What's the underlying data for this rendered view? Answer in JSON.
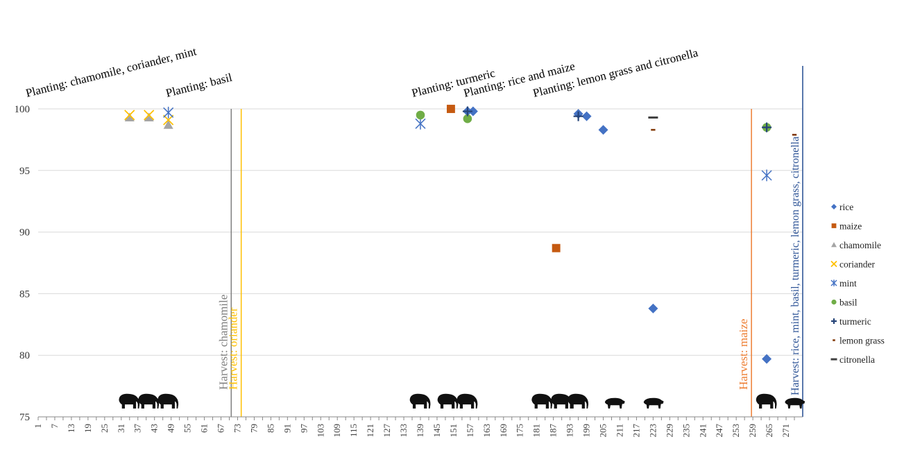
{
  "chart_data": {
    "type": "scatter",
    "title": "",
    "xlabel": "",
    "ylabel": "",
    "ylim": [
      75,
      100
    ],
    "yticks": [
      75,
      80,
      85,
      90,
      95,
      100
    ],
    "xlim": [
      1,
      277
    ],
    "xticks": [
      1,
      7,
      13,
      19,
      25,
      31,
      37,
      43,
      49,
      55,
      61,
      67,
      73,
      79,
      85,
      91,
      97,
      103,
      109,
      115,
      121,
      127,
      133,
      139,
      145,
      151,
      157,
      163,
      169,
      175,
      181,
      187,
      193,
      199,
      205,
      211,
      217,
      223,
      229,
      235,
      241,
      247,
      253,
      259,
      265,
      271
    ],
    "grid": "horizontal",
    "legend_position": "right",
    "series": [
      {
        "name": "rice",
        "marker": "diamond",
        "color": "#4472C4",
        "points": [
          [
            156,
            99.8
          ],
          [
            158,
            99.8
          ],
          [
            196,
            99.6
          ],
          [
            199,
            99.4
          ],
          [
            205,
            98.3
          ],
          [
            223,
            83.8
          ],
          [
            264,
            79.7
          ]
        ]
      },
      {
        "name": "maize",
        "marker": "square",
        "color": "#C55A11",
        "points": [
          [
            150,
            100
          ],
          [
            188,
            88.7
          ]
        ]
      },
      {
        "name": "chamomile",
        "marker": "triangle",
        "color": "#A5A5A5",
        "points": [
          [
            34,
            99.3
          ],
          [
            41,
            99.3
          ],
          [
            48,
            98.7
          ]
        ]
      },
      {
        "name": "coriander",
        "marker": "x",
        "color": "#FFC000",
        "points": [
          [
            34,
            99.5
          ],
          [
            41,
            99.5
          ],
          [
            48,
            99.1
          ]
        ]
      },
      {
        "name": "mint",
        "marker": "asterisk",
        "color": "#4472C4",
        "points": [
          [
            48,
            99.7
          ],
          [
            139,
            98.8
          ],
          [
            264,
            94.6
          ]
        ]
      },
      {
        "name": "basil",
        "marker": "circle",
        "color": "#70AD47",
        "points": [
          [
            139,
            99.5
          ],
          [
            156,
            99.2
          ],
          [
            264,
            98.5
          ]
        ]
      },
      {
        "name": "turmeric",
        "marker": "plus",
        "color": "#264478",
        "points": [
          [
            156,
            99.8
          ],
          [
            196,
            99.4
          ],
          [
            264,
            98.5
          ]
        ]
      },
      {
        "name": "lemon grass",
        "marker": "dash-small",
        "color": "#843C0C",
        "points": [
          [
            223,
            98.3
          ],
          [
            274,
            97.9
          ]
        ]
      },
      {
        "name": "citronella",
        "marker": "dash",
        "color": "#404040",
        "points": [
          [
            223,
            99.3
          ]
        ]
      }
    ],
    "annotations": [
      {
        "text": "Planting: chamomile, coriander, mint",
        "x": 34,
        "rotation": -14
      },
      {
        "text": "Planting: basil",
        "x": 50,
        "rotation": -14
      },
      {
        "text": "Planting: turmeric",
        "x": 137,
        "rotation": -14
      },
      {
        "text": "Planting: rice and maize",
        "x": 155,
        "rotation": -14
      },
      {
        "text": "Planting: lemon grass and citronella",
        "x": 180,
        "rotation": -14
      }
    ],
    "harvest_lines": [
      {
        "label": "Harvest: chamomile",
        "x": 70.7,
        "color": "#7F7F7F"
      },
      {
        "label": "Harvest: oriander",
        "x": 74.3,
        "color": "#FFC000"
      },
      {
        "label": "Harvest: maize",
        "x": 258.5,
        "color": "#ED7D31"
      },
      {
        "label": "Harvest: rice, mint, basil, turmeric, lemon grass, citronella",
        "x": 277,
        "color": "#2F5597"
      }
    ],
    "animal_icons": [
      {
        "type": "elephant",
        "x": 34
      },
      {
        "type": "elephant",
        "x": 41
      },
      {
        "type": "elephant",
        "x": 48
      },
      {
        "type": "elephant",
        "x": 139
      },
      {
        "type": "elephant",
        "x": 149
      },
      {
        "type": "elephant",
        "x": 156
      },
      {
        "type": "elephant",
        "x": 183
      },
      {
        "type": "elephant",
        "x": 190
      },
      {
        "type": "elephant",
        "x": 196
      },
      {
        "type": "boar",
        "x": 209
      },
      {
        "type": "boar",
        "x": 223
      },
      {
        "type": "elephant",
        "x": 264
      },
      {
        "type": "boar",
        "x": 274
      }
    ]
  }
}
